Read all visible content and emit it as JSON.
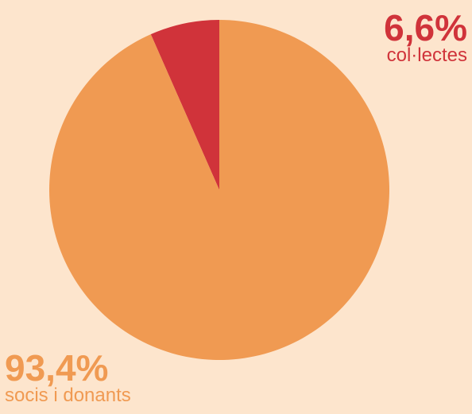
{
  "chart_data": {
    "type": "pie",
    "title": "",
    "slices": [
      {
        "label": "col·lectes",
        "percent_label": "6,6%",
        "value": 6.6,
        "color": "#D0333A"
      },
      {
        "label": "socis i donants",
        "percent_label": "93,4%",
        "value": 93.4,
        "color": "#F09A52"
      }
    ],
    "start_angle": "12 o'clock",
    "direction": "counter-clockwise",
    "legend": "none"
  },
  "colors": {
    "background": "#FDE5CD"
  }
}
